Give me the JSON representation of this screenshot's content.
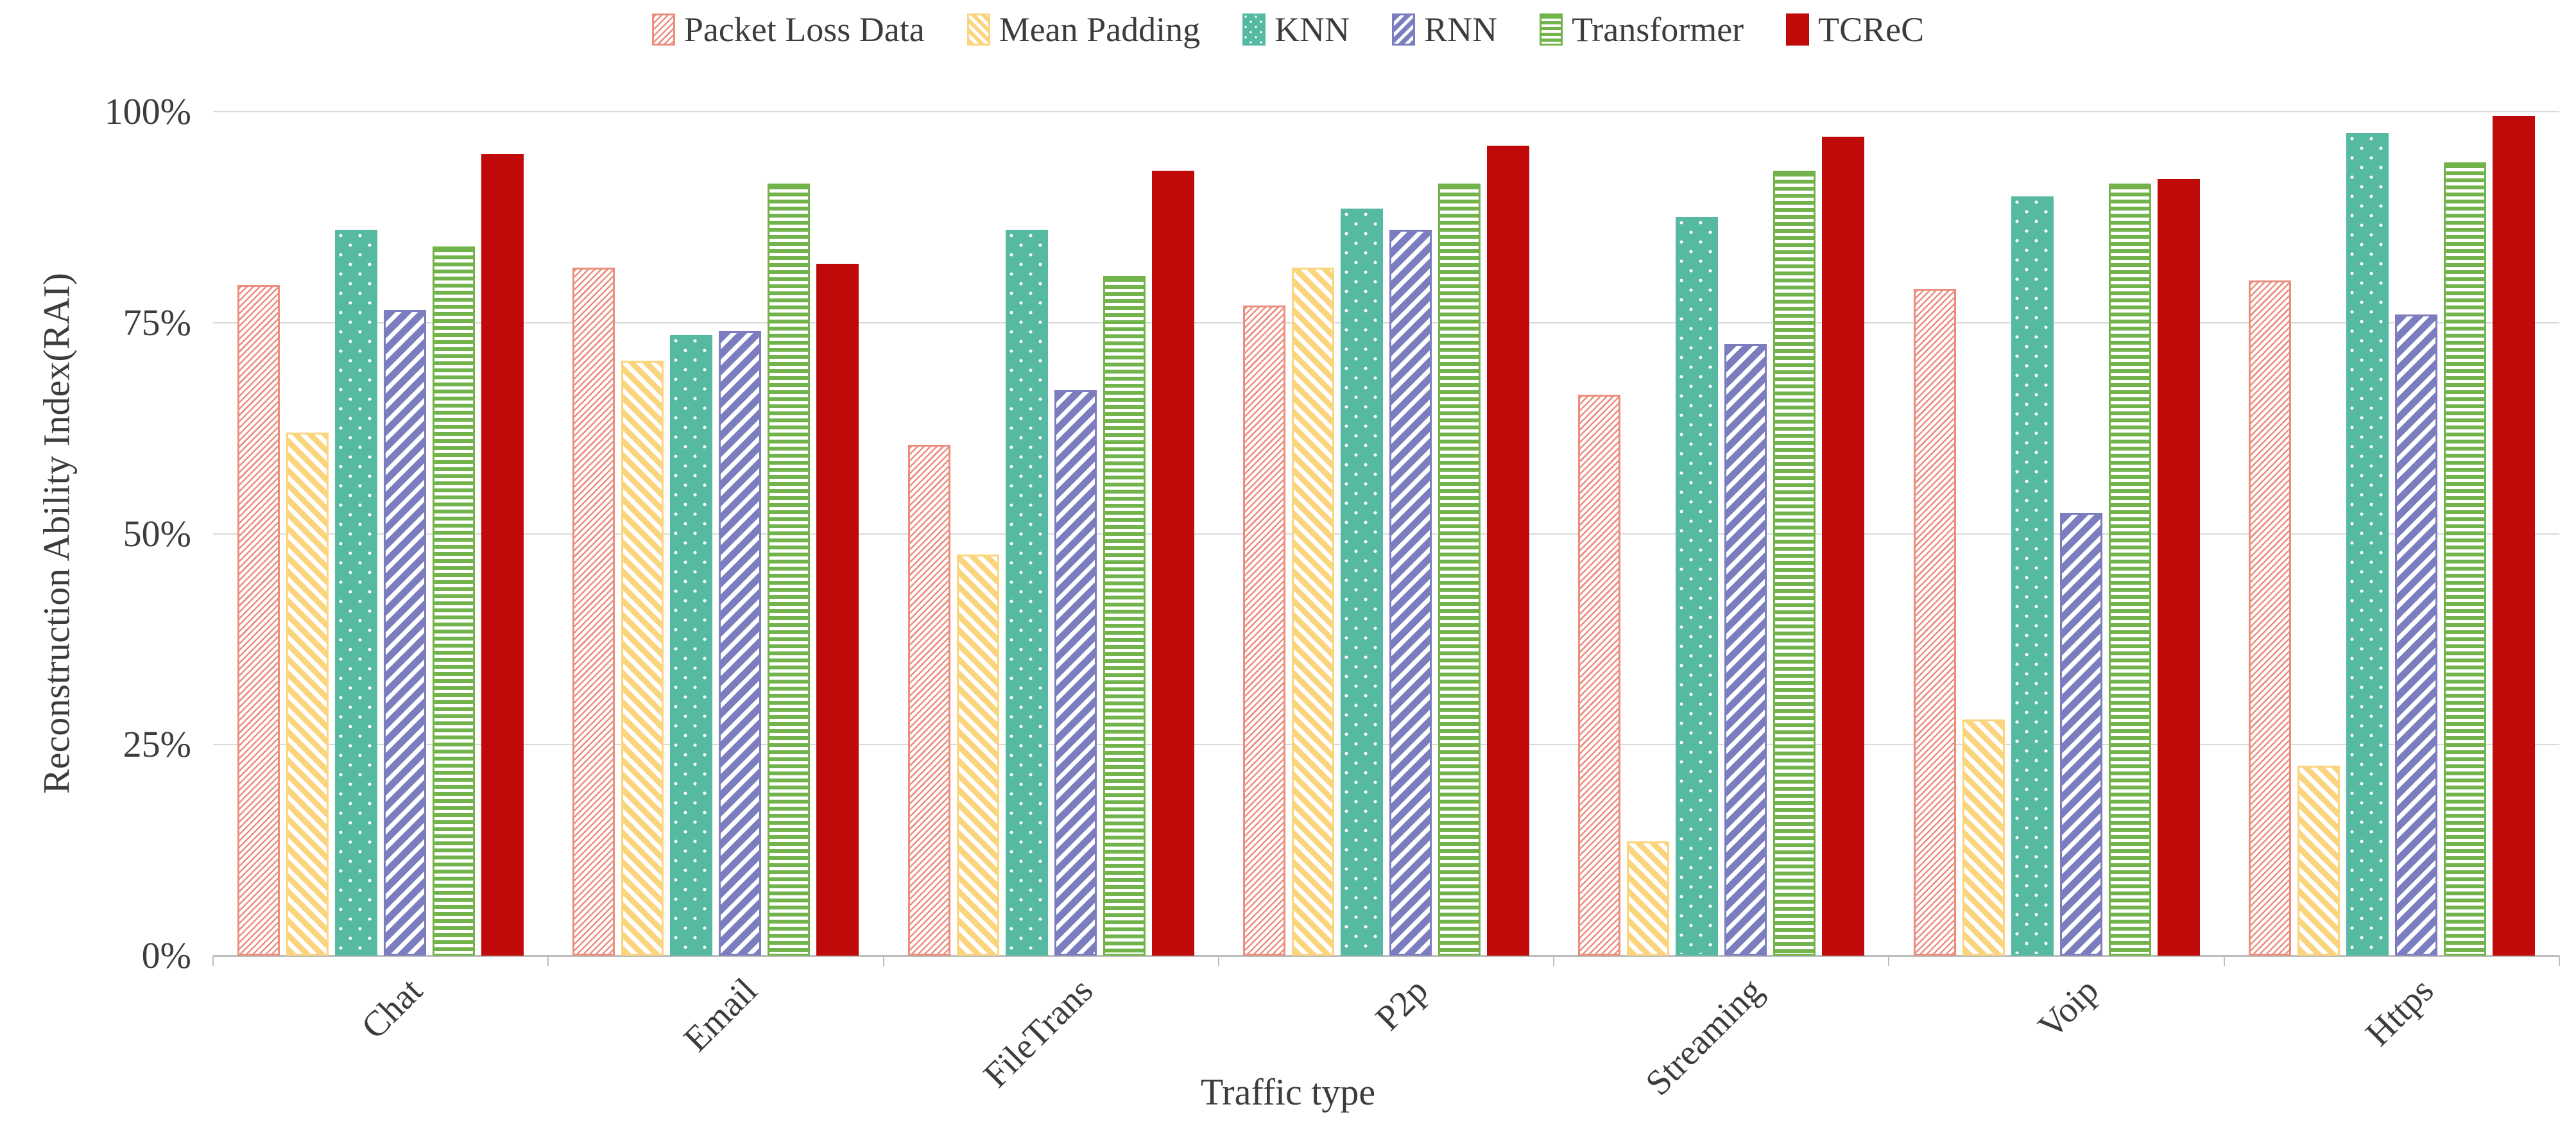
{
  "chart_data": {
    "type": "bar",
    "title": "",
    "xlabel": "Traffic type",
    "ylabel": "Reconstruction Ability Index(RAI)",
    "categories": [
      "Chat",
      "Email",
      "FileTrans",
      "P2p",
      "Streaming",
      "Voip",
      "Https"
    ],
    "series": [
      {
        "name": "Packet Loss Data",
        "color": "#EB8E7D",
        "pattern": "fine-diagonal-hatch",
        "values": [
          79.5,
          81.5,
          60.5,
          77,
          66.5,
          79,
          80
        ]
      },
      {
        "name": "Mean Padding",
        "color": "#FBD47E",
        "pattern": "diagonal-down-stripes",
        "values": [
          62,
          70.5,
          47.5,
          81.5,
          13.5,
          28,
          22.5
        ]
      },
      {
        "name": "KNN",
        "color": "#56B9A2",
        "pattern": "white-dots",
        "values": [
          86,
          73.5,
          86,
          88.5,
          87.5,
          90,
          97.5
        ]
      },
      {
        "name": "RNN",
        "color": "#7B7DBE",
        "pattern": "diagonal-up-stripes",
        "values": [
          76.5,
          74,
          67,
          86,
          72.5,
          52.5,
          76
        ]
      },
      {
        "name": "Transformer",
        "color": "#72B34C",
        "pattern": "horizontal-stripes",
        "values": [
          84,
          91.5,
          80.5,
          91.5,
          93,
          91.5,
          94
        ]
      },
      {
        "name": "TCReC",
        "color": "#C00909",
        "pattern": "solid",
        "values": [
          95,
          82,
          93,
          96,
          97,
          92,
          99.5
        ]
      }
    ],
    "yticks": [
      {
        "label": "0%",
        "value": 0
      },
      {
        "label": "25%",
        "value": 25
      },
      {
        "label": "50%",
        "value": 50
      },
      {
        "label": "75%",
        "value": 75
      },
      {
        "label": "100%",
        "value": 100
      }
    ],
    "ylim": [
      0,
      100
    ],
    "grid": true,
    "legend_position": "top-center"
  }
}
